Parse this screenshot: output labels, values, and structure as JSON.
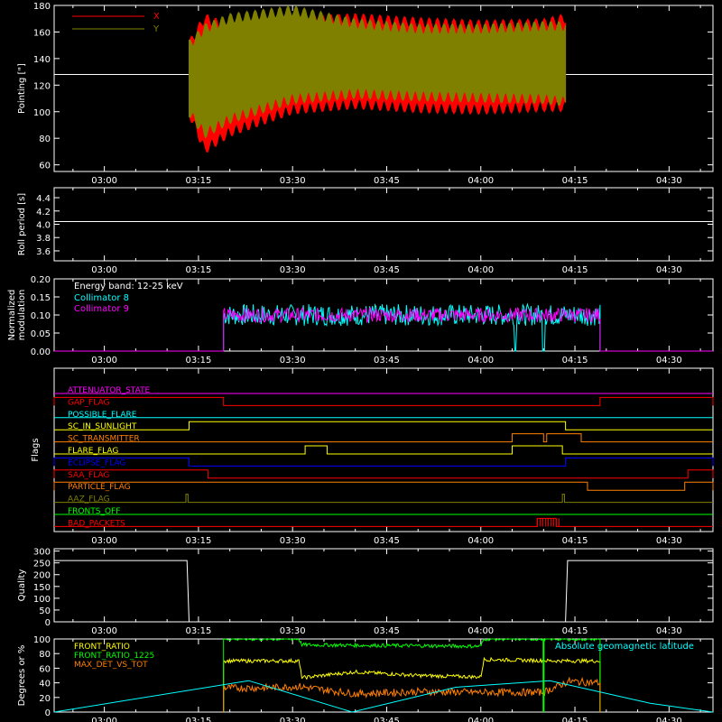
{
  "time_ticks": [
    "03:00",
    "03:15",
    "03:30",
    "03:45",
    "04:00",
    "04:15",
    "04:30"
  ],
  "chart_data": [
    {
      "type": "area",
      "panel": "pointing",
      "ylabel": "Pointing [\"]",
      "ylim": [
        55,
        180
      ],
      "yticks": [
        60,
        80,
        100,
        120,
        140,
        160,
        180
      ],
      "reference_line": 128,
      "legend": [
        {
          "name": "X",
          "color": "#ff0000"
        },
        {
          "name": "Y",
          "color": "#808000"
        }
      ],
      "series": [
        {
          "name": "X",
          "color": "#ff0000",
          "x": [
            "03:13:30",
            "03:16",
            "03:20",
            "03:30",
            "03:40",
            "03:50",
            "04:00",
            "04:10",
            "04:13:30"
          ],
          "upper": [
            150,
            170,
            162,
            168,
            170,
            167,
            165,
            166,
            170
          ],
          "lower": [
            100,
            72,
            85,
            102,
            106,
            103,
            102,
            104,
            104
          ]
        },
        {
          "name": "Y",
          "color": "#808000",
          "x": [
            "03:13:30",
            "03:16",
            "03:20",
            "03:30",
            "03:40",
            "03:50",
            "04:00",
            "04:10",
            "04:13:30"
          ],
          "upper": [
            150,
            162,
            170,
            176,
            166,
            162,
            162,
            164,
            164
          ],
          "lower": [
            100,
            84,
            95,
            110,
            114,
            112,
            111,
            110,
            108
          ]
        }
      ]
    },
    {
      "type": "line",
      "panel": "roll_period",
      "ylabel": "Roll period [s]",
      "ylim": [
        3.45,
        4.55
      ],
      "yticks": [
        3.6,
        3.8,
        4.0,
        4.2,
        4.4
      ],
      "series": [
        {
          "name": "",
          "color": "#ffffff",
          "x": [
            "02:52",
            "04:37"
          ],
          "y": [
            4.04,
            4.04
          ]
        }
      ]
    },
    {
      "type": "line",
      "panel": "modulation",
      "ylabel": "Normalized modulation",
      "ylim": [
        0,
        0.2
      ],
      "yticks": [
        0.0,
        0.05,
        0.1,
        0.15,
        0.2
      ],
      "annotation": "Energy band: 12-25 keV",
      "legend": [
        {
          "name": "Collimator 8",
          "color": "#00ffff"
        },
        {
          "name": "Collimator 9",
          "color": "#ff00ff"
        }
      ],
      "series": [
        {
          "name": "Collimator 8",
          "color": "#00ffff",
          "x": [
            "03:19",
            "04:19"
          ],
          "level": 0.1,
          "noise": 0.03
        },
        {
          "name": "Collimator 9",
          "color": "#ff00ff",
          "x": [
            "03:19",
            "04:19"
          ],
          "level": 0.1,
          "noise": 0.02
        }
      ]
    },
    {
      "type": "line",
      "panel": "flags",
      "ylabel": "Flags",
      "series": [
        {
          "name": "ATTENUATOR_STATE",
          "color": "#ff00ff",
          "high": []
        },
        {
          "name": "GAP_FLAG",
          "color": "#ff0000",
          "high": [
            [
              "02:52",
              "03:19"
            ],
            [
              "04:19",
              "04:37"
            ]
          ]
        },
        {
          "name": "POSSIBLE_FLARE",
          "color": "#00ffff",
          "high": []
        },
        {
          "name": "SC_IN_SUNLIGHT",
          "color": "#ffff00",
          "high": [
            [
              "03:13:30",
              "04:13:30"
            ]
          ]
        },
        {
          "name": "SC_TRANSMITTER",
          "color": "#ff8000",
          "high": [
            [
              "04:05",
              "04:10"
            ],
            [
              "04:10:30",
              "04:16"
            ]
          ]
        },
        {
          "name": "FLARE_FLAG",
          "color": "#ffff00",
          "high": [
            [
              "03:32",
              "03:35:30"
            ],
            [
              "04:05",
              "04:13"
            ]
          ]
        },
        {
          "name": "ECLIPSE_FLAG",
          "color": "#0000ff",
          "high": [
            [
              "02:52",
              "03:13:30"
            ],
            [
              "04:13:30",
              "04:37"
            ]
          ]
        },
        {
          "name": "SAA_FLAG",
          "color": "#ff0000",
          "high": [
            [
              "02:52",
              "03:16:30"
            ],
            [
              "04:33",
              "04:37"
            ]
          ]
        },
        {
          "name": "PARTICLE_FLAG",
          "color": "#ff8000",
          "high": [
            [
              "02:52",
              "04:17"
            ],
            [
              "04:32:30",
              "04:37"
            ]
          ]
        },
        {
          "name": "AAZ_FLAG",
          "color": "#808000",
          "high": [
            [
              "03:13",
              "03:13:20"
            ],
            [
              "04:13",
              "04:13:20"
            ]
          ]
        },
        {
          "name": "FRONTS_OFF",
          "color": "#00ff00",
          "high": []
        },
        {
          "name": "BAD_PACKETS",
          "color": "#ff0000",
          "high": [
            [
              "04:09",
              "04:12"
            ]
          ]
        }
      ]
    },
    {
      "type": "line",
      "panel": "quality",
      "ylabel": "Quality",
      "ylim": [
        0,
        310
      ],
      "yticks": [
        0,
        50,
        100,
        150,
        200,
        250,
        300
      ],
      "series": [
        {
          "name": "",
          "color": "#ffffff",
          "x": [
            "02:52",
            "03:13:10",
            "03:13:30",
            "04:13:30",
            "04:13:50",
            "04:37"
          ],
          "y": [
            260,
            260,
            0,
            0,
            260,
            260
          ]
        }
      ]
    },
    {
      "type": "line",
      "panel": "ratios",
      "ylabel": "Degrees or %",
      "ylim": [
        0,
        100
      ],
      "yticks": [
        0,
        20,
        40,
        60,
        80,
        100
      ],
      "annotation": "Absolute geomagnetic latitude",
      "legend": [
        {
          "name": "FRONT_RATIO",
          "color": "#ffff00"
        },
        {
          "name": "FRONT_RATIO_1225",
          "color": "#00ff00"
        },
        {
          "name": "MAX_DET_VS_TOT",
          "color": "#ff8000"
        }
      ],
      "series": [
        {
          "name": "FRONT_RATIO",
          "color": "#ffff00",
          "x": [
            "03:19",
            "03:31",
            "03:31:30",
            "03:40",
            "03:50",
            "04:00",
            "04:00:30",
            "04:12",
            "04:19"
          ],
          "y": [
            70,
            70,
            47,
            55,
            50,
            48,
            72,
            70,
            70
          ]
        },
        {
          "name": "FRONT_RATIO_1225",
          "color": "#00ff00",
          "x": [
            "03:19",
            "03:31",
            "03:31:30",
            "04:00",
            "04:00:30",
            "04:19"
          ],
          "y": [
            100,
            100,
            92,
            90,
            100,
            100
          ]
        },
        {
          "name": "MAX_DET_VS_TOT",
          "color": "#ff8000",
          "x": [
            "03:19",
            "03:25",
            "03:31",
            "03:40",
            "03:50",
            "04:00",
            "04:10",
            "04:14",
            "04:19"
          ],
          "y": [
            33,
            33,
            35,
            25,
            28,
            27,
            27,
            42,
            40
          ]
        },
        {
          "name": "Absolute geomagnetic latitude",
          "color": "#00ffff",
          "x": [
            "02:52",
            "03:23",
            "03:39:30",
            "03:56",
            "04:11",
            "04:27",
            "04:37"
          ],
          "y": [
            0,
            43,
            0,
            34,
            43,
            12,
            0
          ]
        }
      ]
    }
  ]
}
